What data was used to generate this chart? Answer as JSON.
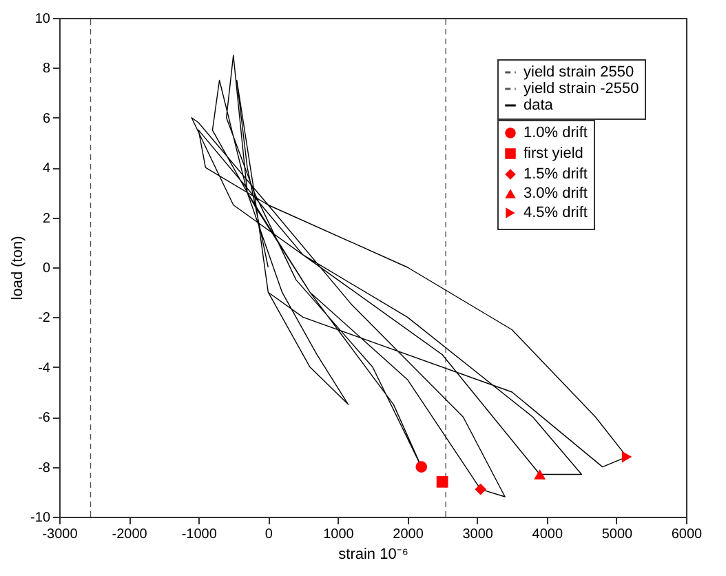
{
  "chart_data": {
    "type": "line",
    "xlabel": "strain 10⁻⁶",
    "ylabel": "load (ton)",
    "xlim": [
      -3000,
      6000
    ],
    "xticks": [
      -3000,
      -2000,
      -1000,
      0,
      1000,
      2000,
      3000,
      4000,
      5000,
      6000
    ],
    "ylim": [
      -10,
      10
    ],
    "yticks": [
      -10,
      -8,
      -6,
      -4,
      -2,
      0,
      2,
      4,
      6,
      8,
      10
    ],
    "grid": false,
    "legend": "top right",
    "series": [
      {
        "name": "yield strain  2550",
        "type": "line",
        "color": "#555555",
        "line_style": "dashed",
        "marker": "none",
        "x": [
          2550,
          2550
        ],
        "values": [
          -10,
          10
        ]
      },
      {
        "name": "yield strain -2550",
        "type": "line",
        "color": "#555555",
        "line_style": "dashed",
        "marker": "none",
        "x": [
          -2550,
          -2550
        ],
        "values": [
          -10,
          10
        ]
      },
      {
        "name": "data",
        "type": "line",
        "color": "#000000",
        "line_style": "solid",
        "marker": "none",
        "x": [
          0,
          -300,
          -450,
          -200,
          0,
          600,
          1150,
          700,
          200,
          -300,
          -500,
          -600,
          -200,
          400,
          1500,
          2200,
          1800,
          600,
          -200,
          -800,
          -700,
          -300,
          600,
          2000,
          3050,
          3400,
          2800,
          1200,
          0,
          -1000,
          -1100,
          -500,
          1000,
          2500,
          3900,
          4500,
          3800,
          2000,
          500,
          -100,
          -1000,
          -900,
          0,
          2000,
          3500,
          4700,
          5150,
          4800,
          3500,
          1500,
          500,
          0
        ],
        "values": [
          0,
          4,
          7.5,
          3,
          -1,
          -4,
          -5.5,
          -3.5,
          -1,
          3,
          8.5,
          6,
          3,
          -0.5,
          -4,
          -8,
          -5.5,
          -1,
          2.5,
          5.5,
          7.5,
          3,
          -1,
          -4.5,
          -8.9,
          -9.2,
          -6,
          -1.5,
          2.5,
          5.8,
          6,
          2.5,
          -0.5,
          -3.5,
          -8.3,
          -8.3,
          -6,
          -2,
          0.5,
          2.5,
          5.5,
          4,
          2.5,
          0,
          -2.5,
          -6,
          -7.6,
          -8,
          -5,
          -3,
          -2,
          -1
        ]
      },
      {
        "name": "1.0% drift",
        "type": "scatter",
        "color": "#ff0000",
        "marker": "circle",
        "x": [
          2200
        ],
        "values": [
          -8
        ]
      },
      {
        "name": "first yield",
        "type": "scatter",
        "color": "#ff0000",
        "marker": "square",
        "x": [
          2500
        ],
        "values": [
          -8.6
        ]
      },
      {
        "name": "1.5% drift",
        "type": "scatter",
        "color": "#ff0000",
        "marker": "diamond",
        "x": [
          3050
        ],
        "values": [
          -8.9
        ]
      },
      {
        "name": "3.0% drift",
        "type": "scatter",
        "color": "#ff0000",
        "marker": "triangle",
        "x": [
          3900
        ],
        "values": [
          -8.3
        ]
      },
      {
        "name": "4.5% drift",
        "type": "scatter",
        "color": "#ff0000",
        "marker": "triangle-right",
        "x": [
          5150
        ],
        "values": [
          -7.6
        ]
      }
    ]
  }
}
